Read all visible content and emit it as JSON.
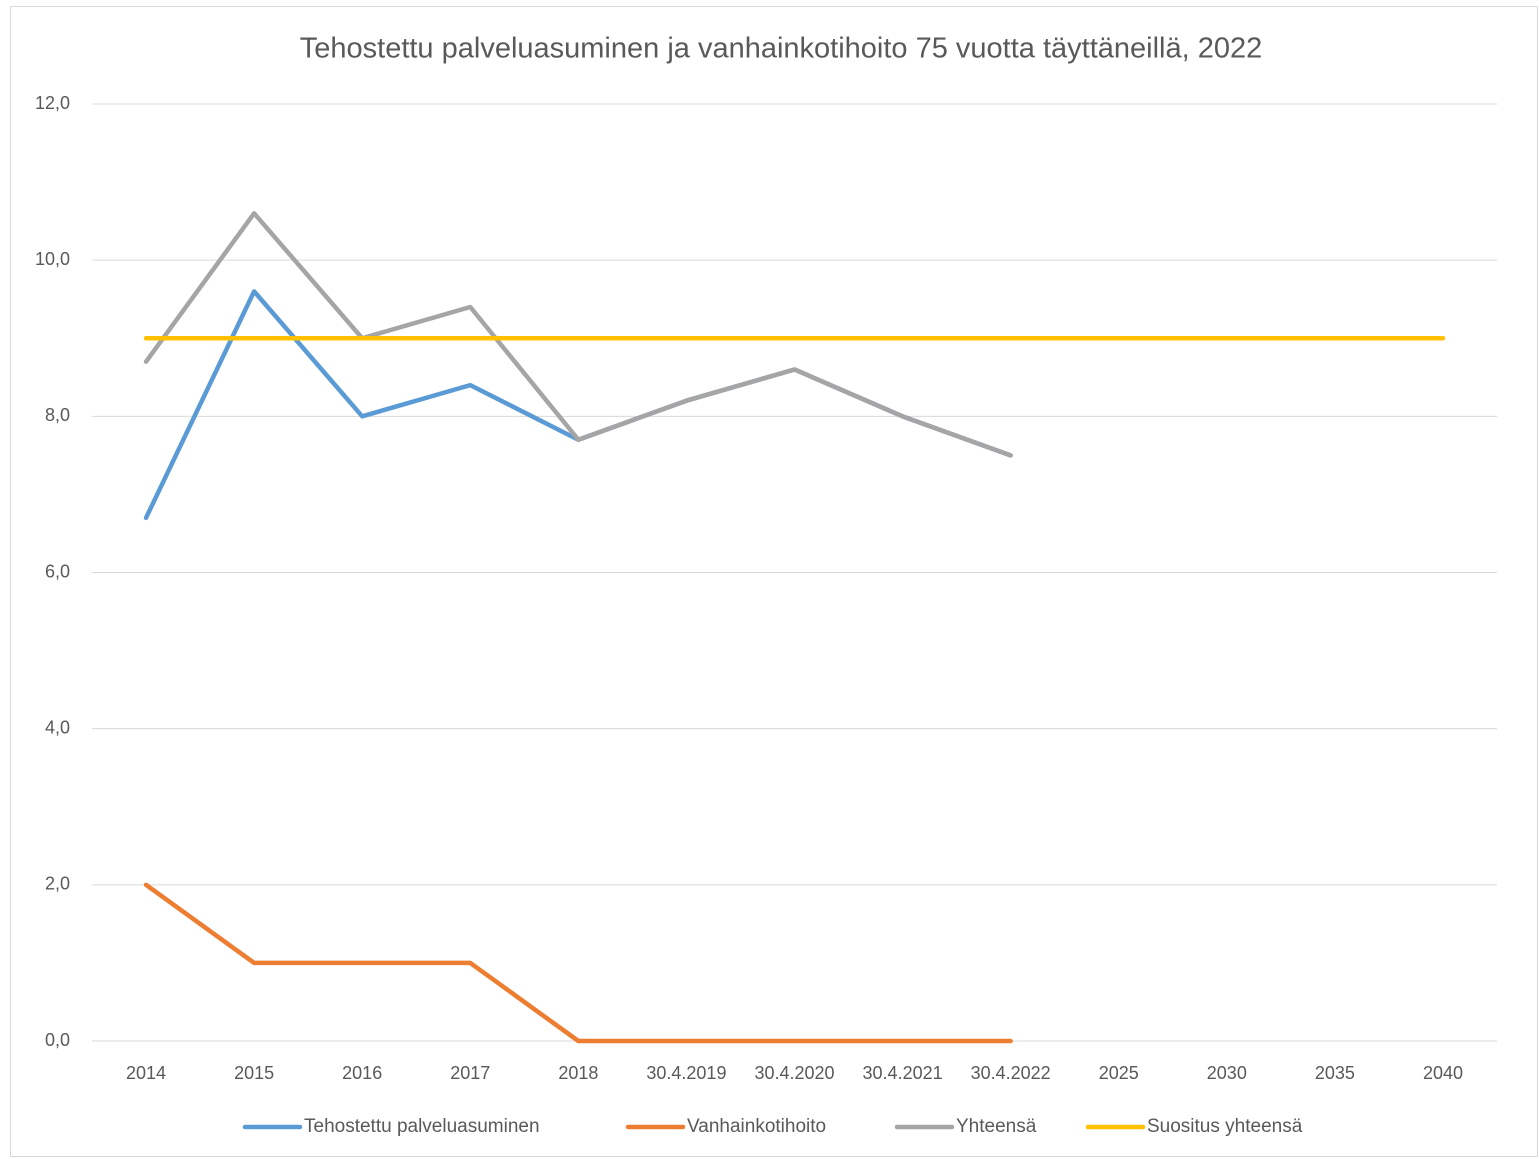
{
  "chart_data": {
    "type": "line",
    "title": "Tehostettu palveluasuminen ja vanhainkotihoito 75 vuotta täyttäneillä, 2022",
    "categories": [
      "2014",
      "2015",
      "2016",
      "2017",
      "2018",
      "30.4.2019",
      "30.4.2020",
      "30.4.2021",
      "30.4.2022",
      "2025",
      "2030",
      "2035",
      "2040"
    ],
    "series": [
      {
        "name": "Tehostettu palveluasuminen",
        "color": "#5b9bd5",
        "values": [
          6.7,
          9.6,
          8.0,
          8.4,
          7.7,
          8.2,
          8.6,
          8.0,
          7.5,
          null,
          null,
          null,
          null
        ]
      },
      {
        "name": "Vanhainkotihoito",
        "color": "#ed7d31",
        "values": [
          2.0,
          1.0,
          1.0,
          1.0,
          0.0,
          0.0,
          0.0,
          0.0,
          0.0,
          null,
          null,
          null,
          null
        ]
      },
      {
        "name": "Yhteensä",
        "color": "#a5a5a5",
        "values": [
          8.7,
          10.6,
          9.0,
          9.4,
          7.7,
          8.2,
          8.6,
          8.0,
          7.5,
          null,
          null,
          null,
          null
        ]
      },
      {
        "name": "Suositus yhteensä",
        "color": "#ffc000",
        "values": [
          9.0,
          9.0,
          9.0,
          9.0,
          9.0,
          9.0,
          9.0,
          9.0,
          9.0,
          9.0,
          9.0,
          9.0,
          9.0
        ]
      }
    ],
    "ylim": [
      0,
      12
    ],
    "yticks": [
      {
        "value": 0,
        "label": "0,0"
      },
      {
        "value": 2,
        "label": "2,0"
      },
      {
        "value": 4,
        "label": "4,0"
      },
      {
        "value": 6,
        "label": "6,0"
      },
      {
        "value": 8,
        "label": "8,0"
      },
      {
        "value": 10,
        "label": "10,0"
      },
      {
        "value": 12,
        "label": "12,0"
      }
    ],
    "grid": true,
    "legend": "bottom"
  }
}
